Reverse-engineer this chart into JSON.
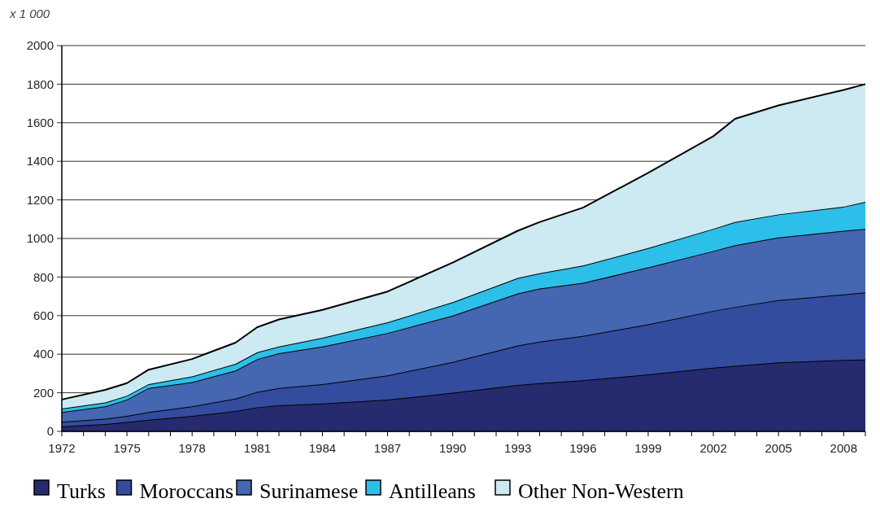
{
  "chart_data": {
    "type": "area",
    "stacked": true,
    "ylabel": "x 1 000",
    "x": [
      1972,
      1974,
      1975,
      1976,
      1978,
      1980,
      1981,
      1982,
      1984,
      1987,
      1990,
      1993,
      1994,
      1996,
      1999,
      2002,
      2003,
      2005,
      2008,
      2009
    ],
    "series": [
      {
        "name": "Turks",
        "color": "#262a6e",
        "values": [
          25,
          38,
          48,
          60,
          80,
          105,
          125,
          135,
          145,
          165,
          200,
          240,
          250,
          265,
          295,
          330,
          340,
          358,
          370,
          372
        ]
      },
      {
        "name": "Moroccans",
        "color": "#334c9e",
        "values": [
          25,
          27,
          32,
          40,
          50,
          65,
          80,
          90,
          100,
          125,
          160,
          205,
          215,
          230,
          260,
          295,
          305,
          322,
          340,
          348
        ]
      },
      {
        "name": "Surinamese",
        "color": "#4566b0",
        "values": [
          50,
          65,
          85,
          125,
          125,
          145,
          170,
          180,
          195,
          220,
          240,
          270,
          275,
          275,
          295,
          310,
          320,
          325,
          330,
          330
        ]
      },
      {
        "name": "Antilleans",
        "color": "#2bbfea",
        "values": [
          18,
          20,
          20,
          20,
          30,
          35,
          35,
          35,
          45,
          55,
          70,
          80,
          80,
          90,
          100,
          115,
          120,
          120,
          125,
          140
        ]
      },
      {
        "name": "Other Non-Western",
        "color": "#cde9f1",
        "values": [
          47,
          65,
          65,
          75,
          90,
          110,
          130,
          140,
          145,
          160,
          205,
          245,
          265,
          300,
          390,
          480,
          535,
          565,
          605,
          610
        ]
      }
    ],
    "xlim": [
      1972,
      2009
    ],
    "xticks": [
      1972,
      {
        "value": 1973,
        "label": null
      },
      {
        "value": 1974,
        "label": null
      },
      1975,
      {
        "value": 1976,
        "label": null
      },
      {
        "value": 1977,
        "label": null
      },
      1978,
      {
        "value": 1979,
        "label": null
      },
      {
        "value": 1980,
        "label": null
      },
      1981,
      {
        "value": 1982,
        "label": null
      },
      {
        "value": 1983,
        "label": null
      },
      1984,
      {
        "value": 1985,
        "label": null
      },
      {
        "value": 1986,
        "label": null
      },
      1987,
      {
        "value": 1988,
        "label": null
      },
      {
        "value": 1989,
        "label": null
      },
      1990,
      {
        "value": 1991,
        "label": null
      },
      {
        "value": 1992,
        "label": null
      },
      1993,
      {
        "value": 1994,
        "label": null
      },
      {
        "value": 1995,
        "label": null
      },
      1996,
      {
        "value": 1997,
        "label": null
      },
      {
        "value": 1998,
        "label": null
      },
      1999,
      {
        "value": 2000,
        "label": null
      },
      {
        "value": 2001,
        "label": null
      },
      2002,
      {
        "value": 2003,
        "label": null
      },
      {
        "value": 2004,
        "label": null
      },
      2005,
      {
        "value": 2006,
        "label": null
      },
      {
        "value": 2007,
        "label": null
      },
      2008,
      {
        "value": 2009,
        "label": null
      }
    ],
    "ylim": [
      0,
      2000
    ],
    "yticks": [
      0,
      200,
      400,
      600,
      800,
      1000,
      1200,
      1400,
      1600,
      1800,
      2000
    ],
    "grid": "y",
    "legend": "bottom"
  }
}
